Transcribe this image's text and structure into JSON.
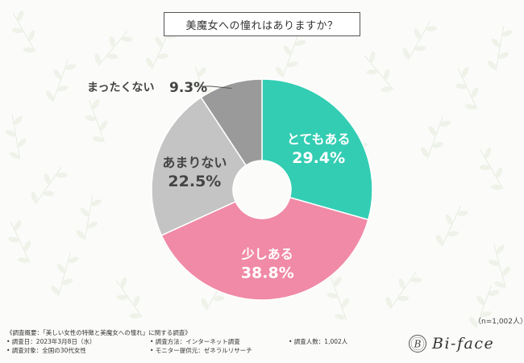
{
  "title": "美魔女への憧れはありますか？",
  "sample_note": "（n=1,002人）",
  "colors": {
    "accent_teal": "#33cdb3",
    "accent_pink": "#f08aa6",
    "gray_light": "#c4c4c4",
    "gray_dark": "#9a9a9a"
  },
  "chart_data": {
    "type": "pie",
    "variant": "donut",
    "title": "美魔女への憧れはありますか？",
    "categories": [
      "とてもある",
      "少しある",
      "あまりない",
      "まったくない"
    ],
    "values": [
      29.4,
      38.8,
      22.5,
      9.3
    ],
    "unit": "%",
    "value_labels": [
      "29.4%",
      "38.8%",
      "22.5%",
      "9.3%"
    ],
    "colors": [
      "#33cdb3",
      "#f08aa6",
      "#c4c4c4",
      "#9a9a9a"
    ]
  },
  "footer": {
    "overview": "《調査概要：「美しい女性の特徴と美魔女への憧れ」に関する調査》",
    "date": "• 調査日：2023年3月8日（水）",
    "target": "• 調査対象：全国の30代女性",
    "method": "• 調査方法：インターネット調査",
    "provider": "• モニター提供元：ゼネラルリサーチ",
    "count": "• 調査人数：1,002人"
  },
  "brand": {
    "name": "Bi-face",
    "mark_letter": "B"
  }
}
